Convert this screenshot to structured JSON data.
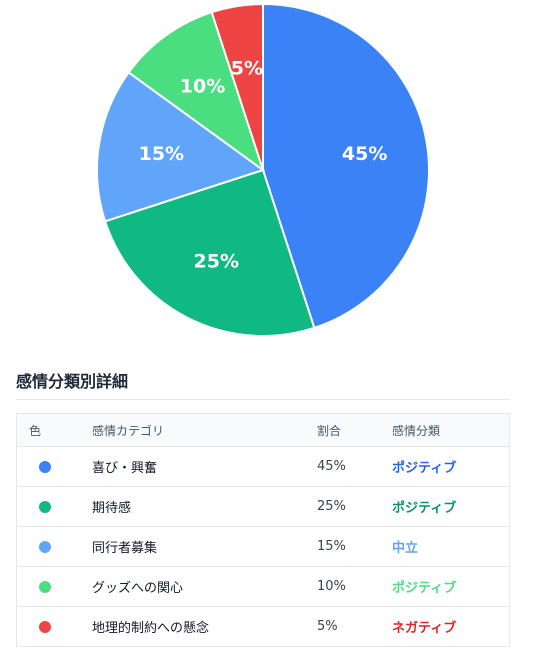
{
  "chart_data": {
    "type": "pie",
    "categories": [
      "喜び・興奮",
      "期待感",
      "同行者募集",
      "グッズへの関心",
      "地理的制約への懸念"
    ],
    "values": [
      45,
      25,
      15,
      10,
      5
    ],
    "slice_labels": [
      "45%",
      "25%",
      "15%",
      "10%",
      "5%"
    ],
    "colors": [
      "#3b82f6",
      "#10b981",
      "#60a5fa",
      "#4ade80",
      "#ef4444"
    ],
    "title": "",
    "start": "top, clockwise"
  },
  "section": {
    "title": "感情分類別詳細"
  },
  "table": {
    "headers": {
      "color": "色",
      "category": "感情カテゴリ",
      "ratio": "割合",
      "classification": "感情分類"
    },
    "rows": [
      {
        "color": "#3b82f6",
        "category": "喜び・興奮",
        "ratio": "45%",
        "classification": "ポジティブ",
        "class_color": "#2563eb"
      },
      {
        "color": "#10b981",
        "category": "期待感",
        "ratio": "25%",
        "classification": "ポジティブ",
        "class_color": "#059669"
      },
      {
        "color": "#60a5fa",
        "category": "同行者募集",
        "ratio": "15%",
        "classification": "中立",
        "class_color": "#60a5fa"
      },
      {
        "color": "#4ade80",
        "category": "グッズへの関心",
        "ratio": "10%",
        "classification": "ポジティブ",
        "class_color": "#4ade80"
      },
      {
        "color": "#ef4444",
        "category": "地理的制約への懸念",
        "ratio": "5%",
        "classification": "ネガティブ",
        "class_color": "#dc2626"
      }
    ]
  }
}
